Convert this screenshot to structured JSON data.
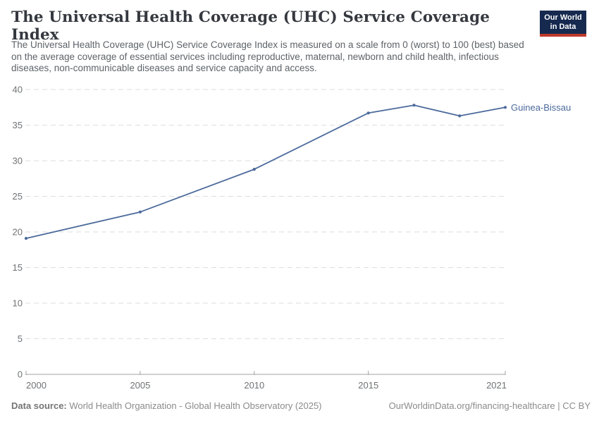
{
  "header": {
    "title": "The Universal Health Coverage (UHC) Service Coverage Index",
    "subtitle": "The Universal Health Coverage (UHC) Service Coverage Index is measured on a scale from 0 (worst) to 100 (best) based on the average coverage of essential services including reproductive, maternal, newborn and child health, infectious diseases, non-communicable diseases and service capacity and access.",
    "logo": {
      "line1": "Our World",
      "line2": "in Data"
    }
  },
  "chart_data": {
    "type": "line",
    "title": "The Universal Health Coverage (UHC) Service Coverage Index",
    "series": [
      {
        "name": "Guinea-Bissau",
        "color": "#4C6A9C",
        "x": [
          2000,
          2005,
          2010,
          2015,
          2017,
          2019,
          2021
        ],
        "values": [
          19.1,
          22.8,
          28.8,
          36.7,
          37.8,
          36.3,
          37.5
        ]
      }
    ],
    "xlim": [
      2000,
      2021
    ],
    "ylim": [
      0,
      40
    ],
    "yticks": [
      0,
      5,
      10,
      15,
      20,
      25,
      30,
      35,
      40
    ],
    "xticks": [
      2000,
      2005,
      2010,
      2015,
      2021
    ],
    "grid": "horizontal-dashed",
    "legend_position": "end-of-line-label",
    "marker": "dot"
  },
  "footer": {
    "datasource_label": "Data source:",
    "datasource_text": " World Health Organization - Global Health Observatory (2025)",
    "link_text": "OurWorldinData.org/financing-healthcare | CC BY"
  },
  "colors": {
    "line": "#4C6A9C",
    "logo_navy": "#16294f",
    "logo_red": "#c0392b",
    "gridline": "#dedede",
    "axis": "#a3a3a3",
    "title_text": "#35393f",
    "subtitle_text": "#5d6368",
    "footer_text": "#8b8b8b"
  }
}
